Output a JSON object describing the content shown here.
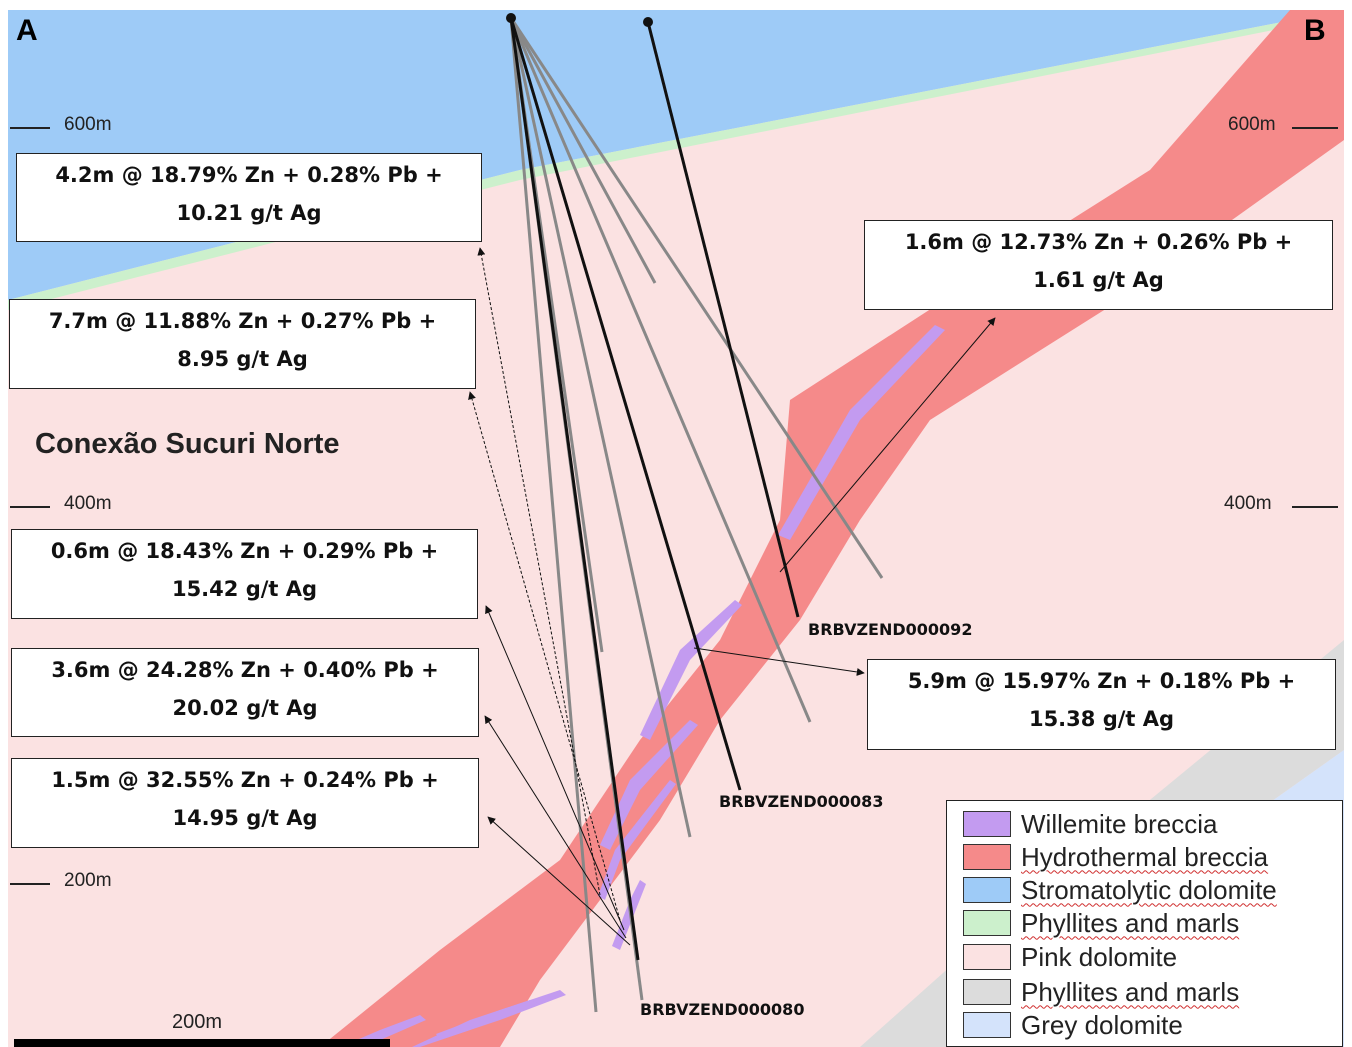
{
  "corners": {
    "left": "A",
    "right": "B"
  },
  "elevations": {
    "e600": "600m",
    "e400": "400m",
    "e200": "200m"
  },
  "section_name": "Conexão Sucuri Norte",
  "intercepts": [
    {
      "line1": "4.2m @ 18.79% Zn + 0.28% Pb +",
      "line2": "10.21 g/t Ag"
    },
    {
      "line1": "7.7m @ 11.88% Zn + 0.27% Pb +",
      "line2": "8.95 g/t Ag"
    },
    {
      "line1": "0.6m @ 18.43% Zn + 0.29% Pb +",
      "line2": "15.42 g/t Ag"
    },
    {
      "line1": "3.6m @ 24.28% Zn + 0.40% Pb +",
      "line2": "20.02 g/t Ag"
    },
    {
      "line1": "1.5m @ 32.55% Zn + 0.24% Pb +",
      "line2": "14.95 g/t Ag"
    },
    {
      "line1": "1.6m @ 12.73% Zn + 0.26% Pb +",
      "line2": "1.61 g/t Ag"
    },
    {
      "line1": "5.9m @ 15.97% Zn + 0.18% Pb +",
      "line2": "15.38 g/t Ag"
    }
  ],
  "drillholes": {
    "h092": "BRBVZEND000092",
    "h083": "BRBVZEND000083",
    "h080": "BRBVZEND000080"
  },
  "scale_bar": {
    "label": "200m"
  },
  "legend": [
    {
      "label": "Willemite breccia",
      "color": "#c39bf0"
    },
    {
      "label": "Hydrothermal breccia",
      "color": "#f58a8a"
    },
    {
      "label": "Stromatolytic dolomite",
      "color": "#9ecbf7"
    },
    {
      "label": "Phyllites and marls",
      "color": "#ccf0cc"
    },
    {
      "label": "Pink dolomite",
      "color": "#fbe2e2"
    },
    {
      "label": "Phyllites and marls",
      "color": "#dcdcdc"
    },
    {
      "label": "Grey dolomite",
      "color": "#d4e3fb"
    }
  ],
  "colors": {
    "pink_dolomite": "#fbe2e2",
    "stromatolytic": "#9ecbf7",
    "phyllite_green": "#ccf0cc",
    "hydrothermal": "#f58a8a",
    "willemite": "#c39bf0",
    "phyllite_grey": "#dcdcdc",
    "grey_dolomite": "#d4e3fb"
  }
}
